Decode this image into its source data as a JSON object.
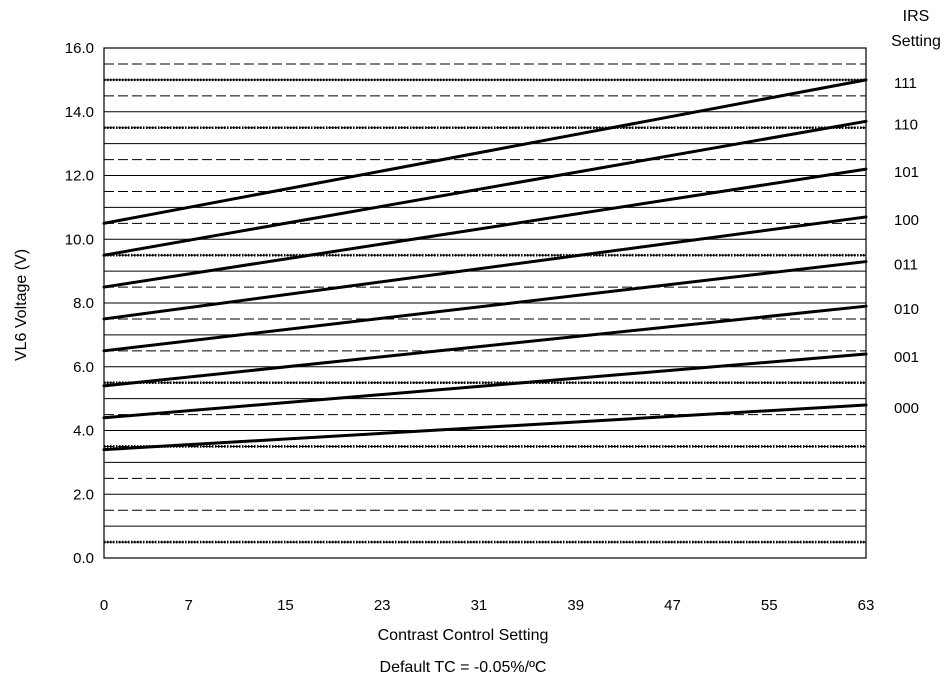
{
  "chart_data": {
    "type": "line",
    "xlabel": "Contrast Control Setting",
    "ylabel": "VL6 Voltage (V)",
    "subtitle": "Default TC = -0.05%/ºC",
    "legend_title_line1": "IRS",
    "legend_title_line2": "Setting",
    "legend_placement": "right",
    "xlim": [
      0,
      63
    ],
    "ylim": [
      0,
      16
    ],
    "x_ticks": [
      0,
      7,
      15,
      23,
      31,
      39,
      47,
      55,
      63
    ],
    "x_tick_labels": [
      "0",
      "7",
      "15",
      "23",
      "31",
      "39",
      "47",
      "55",
      "63"
    ],
    "y_ticks": [
      0,
      2,
      4,
      6,
      8,
      10,
      12,
      14,
      16
    ],
    "y_tick_labels": [
      "0.0",
      "2.0",
      "4.0",
      "6.0",
      "8.0",
      "10.0",
      "12.0",
      "14.0",
      "16.0"
    ],
    "grid": true,
    "grid_minor_step": 0.5,
    "series": [
      {
        "name": "000",
        "x": [
          0,
          63
        ],
        "y": [
          3.4,
          4.8
        ]
      },
      {
        "name": "001",
        "x": [
          0,
          63
        ],
        "y": [
          4.4,
          6.4
        ]
      },
      {
        "name": "010",
        "x": [
          0,
          63
        ],
        "y": [
          5.4,
          7.9
        ]
      },
      {
        "name": "011",
        "x": [
          0,
          63
        ],
        "y": [
          6.5,
          9.3
        ]
      },
      {
        "name": "100",
        "x": [
          0,
          63
        ],
        "y": [
          7.5,
          10.7
        ]
      },
      {
        "name": "101",
        "x": [
          0,
          63
        ],
        "y": [
          8.5,
          12.2
        ]
      },
      {
        "name": "110",
        "x": [
          0,
          63
        ],
        "y": [
          9.5,
          13.7
        ]
      },
      {
        "name": "111",
        "x": [
          0,
          63
        ],
        "y": [
          10.5,
          15.0
        ]
      }
    ],
    "series_color": "#000000"
  }
}
